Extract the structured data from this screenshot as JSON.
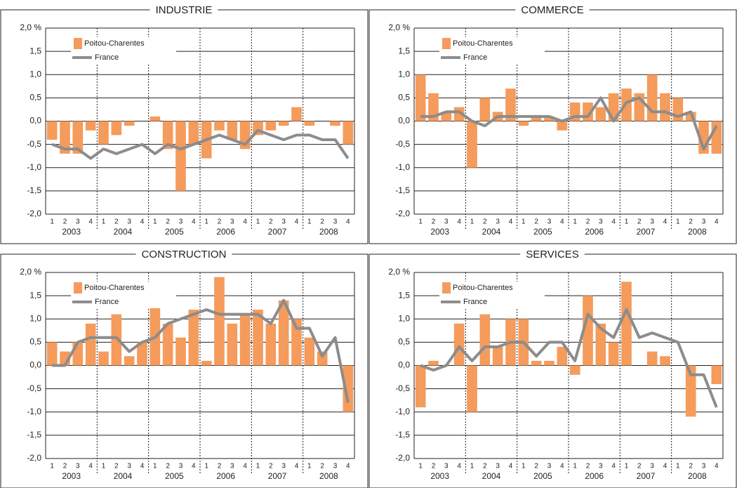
{
  "chart_data": [
    {
      "type": "bar",
      "title": "INDUSTRIE",
      "categories": [
        "1",
        "2",
        "3",
        "4",
        "1",
        "2",
        "3",
        "4",
        "1",
        "2",
        "3",
        "4",
        "1",
        "2",
        "3",
        "4",
        "1",
        "2",
        "3",
        "4",
        "1",
        "2",
        "3",
        "4"
      ],
      "groups": [
        "2003",
        "2004",
        "2005",
        "2006",
        "2007",
        "2008"
      ],
      "series": [
        {
          "name": "Poitou-Charentes",
          "type": "bar",
          "color": "#f59b5b",
          "values": [
            -0.4,
            -0.7,
            -0.7,
            -0.2,
            -0.5,
            -0.3,
            -0.1,
            0.0,
            0.1,
            -0.6,
            -1.5,
            -0.5,
            -0.8,
            -0.2,
            -0.4,
            -0.6,
            -0.3,
            -0.2,
            -0.1,
            0.3,
            -0.1,
            0.0,
            -0.1,
            -0.5
          ]
        },
        {
          "name": "France",
          "type": "line",
          "color": "#8c8c8c",
          "values": [
            -0.5,
            -0.6,
            -0.6,
            -0.8,
            -0.6,
            -0.7,
            -0.6,
            -0.5,
            -0.7,
            -0.5,
            -0.6,
            -0.5,
            -0.4,
            -0.3,
            -0.4,
            -0.5,
            -0.2,
            -0.3,
            -0.4,
            -0.3,
            -0.3,
            -0.4,
            -0.4,
            -0.8
          ]
        }
      ],
      "ylim": [
        -2,
        2
      ],
      "yticks": [
        {
          "value": 2,
          "label": "2,0 %"
        },
        {
          "value": 1.5,
          "label": "1,5"
        },
        {
          "value": 1,
          "label": "1,0"
        },
        {
          "value": 0.5,
          "label": "0,5"
        },
        {
          "value": 0,
          "label": "0,0"
        },
        {
          "value": -0.5,
          "label": "-0,5"
        },
        {
          "value": -1,
          "label": "-1,0"
        },
        {
          "value": -1.5,
          "label": "-1,5"
        },
        {
          "value": -2,
          "label": "-2,0"
        }
      ],
      "grid": true
    },
    {
      "type": "bar",
      "title": "COMMERCE",
      "categories": [
        "1",
        "2",
        "3",
        "4",
        "1",
        "2",
        "3",
        "4",
        "1",
        "2",
        "3",
        "4",
        "1",
        "2",
        "3",
        "4",
        "1",
        "2",
        "3",
        "4",
        "1",
        "2",
        "3",
        "4"
      ],
      "groups": [
        "2003",
        "2004",
        "2005",
        "2006",
        "2007",
        "2008"
      ],
      "series": [
        {
          "name": "Poitou-Charentes",
          "type": "bar",
          "color": "#f59b5b",
          "values": [
            1.0,
            0.6,
            0.2,
            0.3,
            -1.0,
            0.5,
            0.2,
            0.7,
            -0.1,
            0.1,
            0.1,
            -0.2,
            0.4,
            0.4,
            0.3,
            0.6,
            0.7,
            0.6,
            1.0,
            0.6,
            0.5,
            0.2,
            -0.7,
            -0.7
          ]
        },
        {
          "name": "France",
          "type": "line",
          "color": "#8c8c8c",
          "values": [
            0.1,
            0.1,
            0.2,
            0.2,
            0.0,
            -0.1,
            0.1,
            0.1,
            0.1,
            0.1,
            0.1,
            0.0,
            0.1,
            0.1,
            0.5,
            0.0,
            0.4,
            0.5,
            0.2,
            0.2,
            0.1,
            0.2,
            -0.6,
            -0.1
          ]
        }
      ],
      "ylim": [
        -2,
        2
      ],
      "yticks": [
        {
          "value": 2,
          "label": "2,0 %"
        },
        {
          "value": 1.5,
          "label": "1,5"
        },
        {
          "value": 1,
          "label": "1,0"
        },
        {
          "value": 0.5,
          "label": "0,5"
        },
        {
          "value": 0,
          "label": "0,0"
        },
        {
          "value": -0.5,
          "label": "-0,5"
        },
        {
          "value": -1,
          "label": "-1,0"
        },
        {
          "value": -1.5,
          "label": "-1,5"
        },
        {
          "value": -2,
          "label": "-2,0"
        }
      ],
      "grid": true
    },
    {
      "type": "bar",
      "title": "CONSTRUCTION",
      "categories": [
        "1",
        "2",
        "3",
        "4",
        "1",
        "2",
        "3",
        "4",
        "1",
        "2",
        "3",
        "4",
        "1",
        "2",
        "3",
        "4",
        "1",
        "2",
        "3",
        "4",
        "1",
        "2",
        "3",
        "4"
      ],
      "groups": [
        "2003",
        "2004",
        "2005",
        "2006",
        "2007",
        "2008"
      ],
      "series": [
        {
          "name": "Poitou-Charentes",
          "type": "bar",
          "color": "#f59b5b",
          "values": [
            0.5,
            0.3,
            0.5,
            0.9,
            0.3,
            1.1,
            0.2,
            0.5,
            1.3,
            0.9,
            0.6,
            1.2,
            0.1,
            1.9,
            0.9,
            1.1,
            1.2,
            0.9,
            1.4,
            1.0,
            0.6,
            0.3,
            0.0,
            -1.0
          ]
        },
        {
          "name": "France",
          "type": "line",
          "color": "#8c8c8c",
          "values": [
            0.0,
            0.0,
            0.5,
            0.6,
            0.6,
            0.6,
            0.3,
            0.5,
            0.6,
            0.9,
            1.0,
            1.1,
            1.2,
            1.1,
            1.1,
            1.1,
            1.1,
            0.9,
            1.4,
            0.8,
            0.8,
            0.2,
            0.6,
            -0.8
          ]
        }
      ],
      "ylim": [
        -2,
        2
      ],
      "yticks": [
        {
          "value": 2,
          "label": "2,0 %"
        },
        {
          "value": 1.5,
          "label": "1,5"
        },
        {
          "value": 1,
          "label": "1,0"
        },
        {
          "value": 0.5,
          "label": "0,5"
        },
        {
          "value": 0,
          "label": "0,0"
        },
        {
          "value": -0.5,
          "label": "-0,5"
        },
        {
          "value": -1,
          "label": "-1,0"
        },
        {
          "value": -1.5,
          "label": "-1,5"
        },
        {
          "value": -2,
          "label": "-2,0"
        }
      ],
      "grid": true
    },
    {
      "type": "bar",
      "title": "SERVICES",
      "categories": [
        "1",
        "2",
        "3",
        "4",
        "1",
        "2",
        "3",
        "4",
        "1",
        "2",
        "3",
        "4",
        "1",
        "2",
        "3",
        "4",
        "1",
        "2",
        "3",
        "4",
        "1",
        "2",
        "3",
        "4"
      ],
      "groups": [
        "2003",
        "2004",
        "2005",
        "2006",
        "2007",
        "2008"
      ],
      "series": [
        {
          "name": "Poitou-Charentes",
          "type": "bar",
          "color": "#f59b5b",
          "values": [
            -0.9,
            0.1,
            0.0,
            0.9,
            -1.0,
            1.1,
            0.4,
            1.0,
            1.0,
            0.1,
            0.1,
            0.4,
            -0.2,
            1.5,
            0.9,
            0.5,
            1.8,
            0.0,
            0.3,
            0.2,
            0.0,
            -1.1,
            0.0,
            -0.4
          ]
        },
        {
          "name": "France",
          "type": "line",
          "color": "#8c8c8c",
          "values": [
            0.0,
            -0.1,
            0.0,
            0.4,
            0.1,
            0.4,
            0.4,
            0.5,
            0.5,
            0.2,
            0.5,
            0.5,
            0.1,
            1.1,
            0.8,
            0.6,
            1.2,
            0.6,
            0.7,
            0.6,
            0.5,
            -0.2,
            -0.2,
            -0.9
          ]
        }
      ],
      "ylim": [
        -2,
        2
      ],
      "yticks": [
        {
          "value": 2,
          "label": "2,0 %"
        },
        {
          "value": 1.5,
          "label": "1,5"
        },
        {
          "value": 1,
          "label": "1,0"
        },
        {
          "value": 0.5,
          "label": "0,5"
        },
        {
          "value": 0,
          "label": "0,0"
        },
        {
          "value": -0.5,
          "label": "-0,5"
        },
        {
          "value": -1,
          "label": "-1,0"
        },
        {
          "value": -1.5,
          "label": "-1,5"
        },
        {
          "value": -2,
          "label": "-2,0"
        }
      ],
      "grid": true
    }
  ]
}
